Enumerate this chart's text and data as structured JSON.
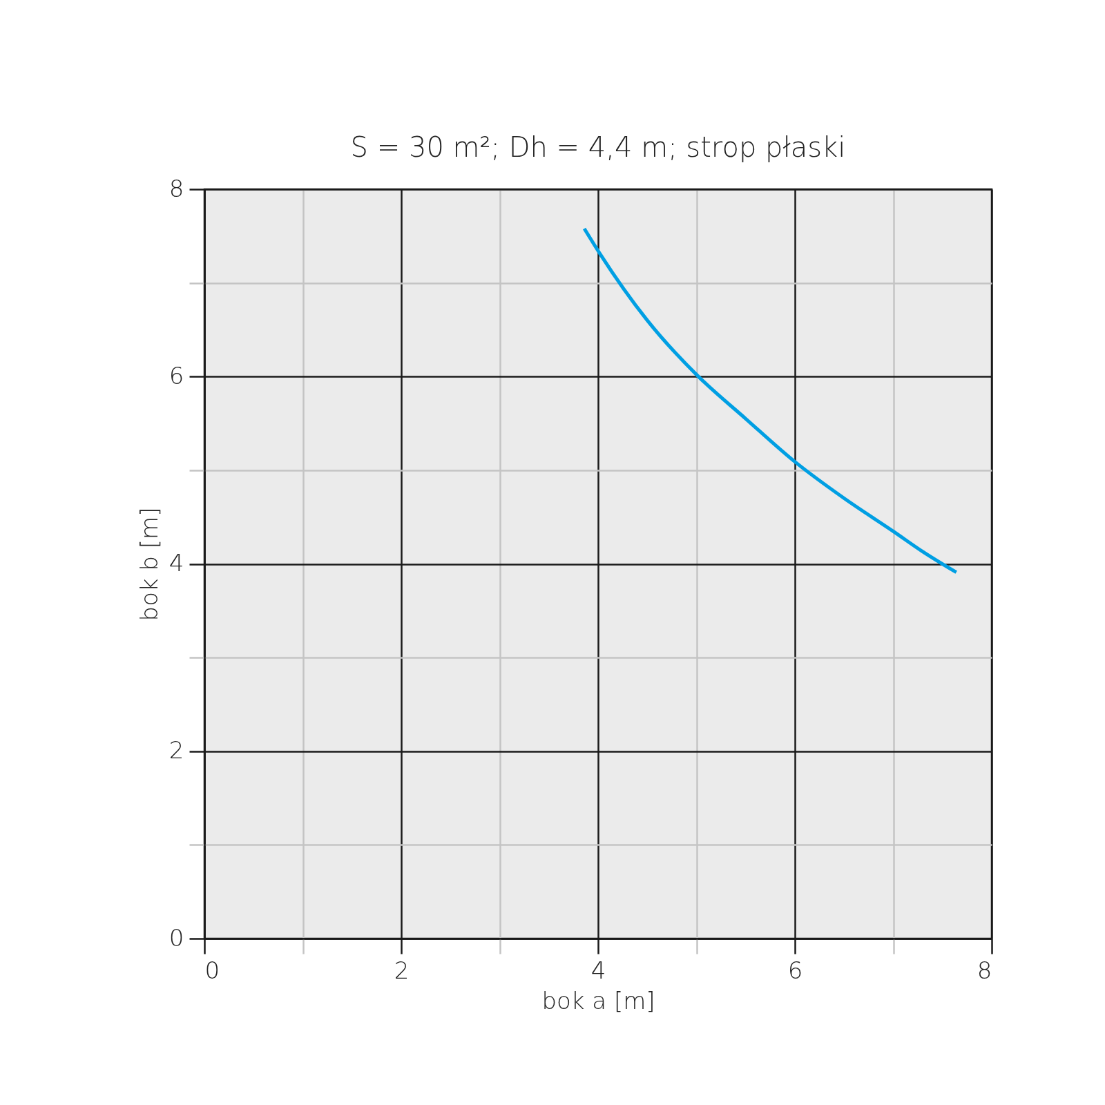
{
  "chart_data": {
    "type": "line",
    "title": "S = 30 m²; Dh = 4,4 m; strop płaski",
    "xlabel": "bok a [m]",
    "ylabel": "bok b [m]",
    "series": [
      {
        "color": "#009fe3",
        "x": [
          3.86,
          4.02,
          4.5,
          5.01,
          5.5,
          6.0,
          6.5,
          7.01,
          7.3,
          7.64
        ],
        "values": [
          7.58,
          7.31,
          6.6,
          6.01,
          5.55,
          5.09,
          4.7,
          4.34,
          4.13,
          3.91
        ]
      }
    ],
    "xlim": [
      0,
      8
    ],
    "ylim": [
      0,
      8
    ],
    "xticks": [
      0,
      {
        "value": 1,
        "label": null
      },
      2,
      {
        "value": 3,
        "label": null
      },
      4,
      {
        "value": 5,
        "label": null
      },
      6,
      {
        "value": 7,
        "label": null
      },
      8
    ],
    "yticks": [
      0,
      {
        "value": 1,
        "label": null
      },
      2,
      {
        "value": 3,
        "label": null
      },
      4,
      {
        "value": 5,
        "label": null
      },
      6,
      {
        "value": 7,
        "label": null
      },
      8
    ],
    "grid": true,
    "marker": "none",
    "line_style": "solid"
  }
}
